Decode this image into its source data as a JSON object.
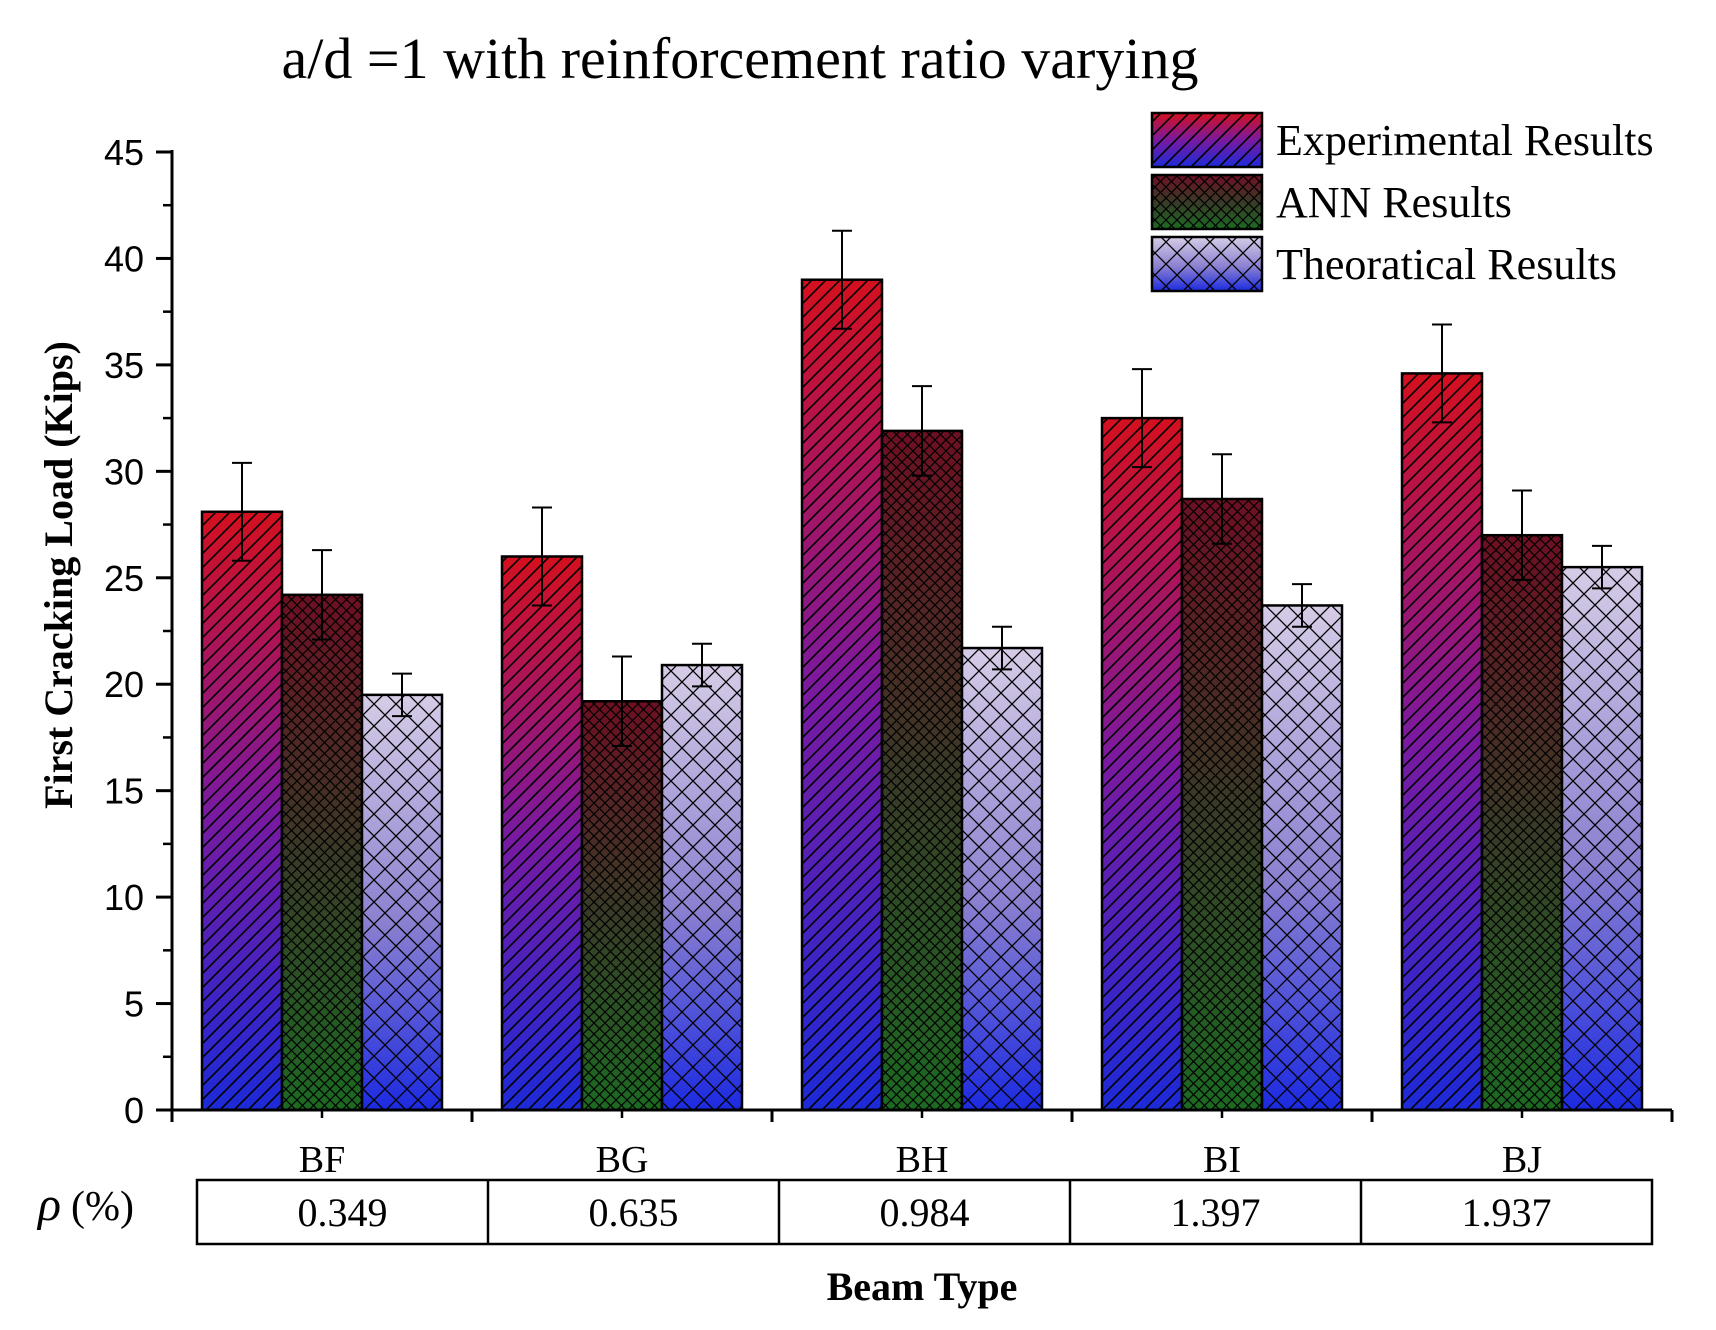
{
  "chart_data": {
    "type": "bar",
    "title": "a/d =1 with reinforcement ratio varying",
    "xlabel": "Beam Type",
    "ylabel": "First Cracking Load (Kips)",
    "ylim": [
      0,
      45
    ],
    "yticks": [
      0,
      5,
      10,
      15,
      20,
      25,
      30,
      35,
      40,
      45
    ],
    "grid": false,
    "legend_position": "top-right",
    "categories": [
      "BF",
      "BG",
      "BH",
      "BI",
      "BJ"
    ],
    "series": [
      {
        "name": "Experimental Results",
        "values": [
          28.1,
          26.0,
          39.0,
          32.5,
          34.6
        ],
        "errors": [
          2.3,
          2.3,
          2.3,
          2.3,
          2.3
        ]
      },
      {
        "name": "ANN Results",
        "values": [
          24.2,
          19.2,
          31.9,
          28.7,
          27.0
        ],
        "errors": [
          2.1,
          2.1,
          2.1,
          2.1,
          2.1
        ]
      },
      {
        "name": "Theoratical Results",
        "values": [
          19.5,
          20.9,
          21.7,
          23.7,
          25.5
        ],
        "errors": [
          1.0,
          1.0,
          1.0,
          1.0,
          1.0
        ]
      }
    ],
    "table": {
      "label": "ρ (%)",
      "values": [
        "0.349",
        "0.635",
        "0.984",
        "1.397",
        "1.937"
      ]
    }
  },
  "colors": {
    "exp_top": "#d4101e",
    "exp_mid": "#7a1aa0",
    "exp_bottom": "#1c2ad8",
    "ann_top": "#6e1022",
    "ann_mid": "#3a3a28",
    "ann_bottom": "#1c6a22",
    "theo_top": "#d6cce6",
    "theo_mid": "#8a80d0",
    "theo_bottom": "#1c2ae0"
  }
}
